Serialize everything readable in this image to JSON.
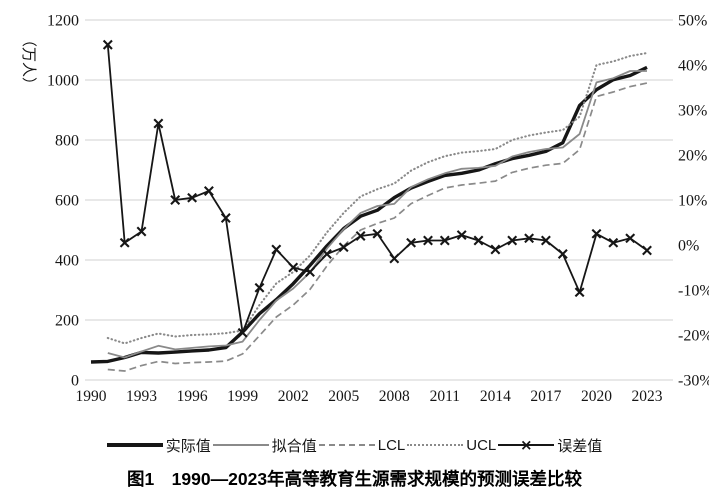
{
  "figure": {
    "caption": "图1　1990—2023年高等教育生源需求规模的预测误差比较"
  },
  "chart_data": {
    "type": "line",
    "title": "",
    "grid": "horizontal",
    "legend_position": "bottom",
    "legend_marker": "×",
    "x": [
      1990,
      1991,
      1992,
      1993,
      1994,
      1995,
      1996,
      1997,
      1998,
      1999,
      2000,
      2001,
      2002,
      2003,
      2004,
      2005,
      2006,
      2007,
      2008,
      2009,
      2010,
      2011,
      2012,
      2013,
      2014,
      2015,
      2016,
      2017,
      2018,
      2019,
      2020,
      2021,
      2022,
      2023
    ],
    "x_tick_labels": [
      "1990",
      "1993",
      "1996",
      "1999",
      "2002",
      "2005",
      "2008",
      "2011",
      "2014",
      "2017",
      "2020",
      "2023"
    ],
    "left_axis": {
      "label": "（万人）",
      "ticks": [
        0,
        200,
        400,
        600,
        800,
        1000,
        1200
      ],
      "range": [
        0,
        1200
      ]
    },
    "right_axis": {
      "ticks": [
        50,
        40,
        30,
        20,
        10,
        0,
        -10,
        -20,
        -30
      ],
      "suffix": "%",
      "range": [
        -30,
        50
      ]
    },
    "colors": {
      "black": "#161616",
      "gray": "#8a8a8a",
      "grid": "#d9d9d9"
    },
    "series": [
      {
        "name": "实际值",
        "style": "actual",
        "axis": "left",
        "values": [
          60,
          62,
          75,
          92,
          90,
          93,
          97,
          100,
          108,
          160,
          221,
          268,
          321,
          382,
          447,
          505,
          546,
          566,
          608,
          640,
          662,
          682,
          689,
          700,
          721,
          738,
          749,
          762,
          791,
          915,
          968,
          1001,
          1015,
          1042
        ]
      },
      {
        "name": "拟合值",
        "style": "fitted",
        "axis": "left",
        "values": [
          null,
          90,
          75,
          95,
          114,
          102,
          107,
          112,
          115,
          128,
          200,
          265,
          305,
          359,
          438,
          503,
          557,
          580,
          587,
          643,
          669,
          689,
          704,
          707,
          714,
          745,
          760,
          770,
          775,
          820,
          992,
          1006,
          1030,
          1030
        ]
      },
      {
        "name": "LCL",
        "style": "lcl",
        "axis": "left",
        "values": [
          null,
          35,
          30,
          48,
          62,
          55,
          58,
          60,
          63,
          87,
          148,
          210,
          250,
          302,
          380,
          447,
          500,
          522,
          540,
          588,
          615,
          640,
          650,
          656,
          663,
          692,
          706,
          716,
          722,
          768,
          945,
          960,
          978,
          990
        ]
      },
      {
        "name": "UCL",
        "style": "ucl",
        "axis": "left",
        "values": [
          null,
          140,
          122,
          140,
          155,
          145,
          150,
          152,
          156,
          165,
          250,
          322,
          360,
          415,
          492,
          557,
          612,
          636,
          655,
          698,
          726,
          746,
          758,
          763,
          770,
          800,
          815,
          825,
          833,
          878,
          1050,
          1062,
          1080,
          1090
        ]
      },
      {
        "name": "误差值",
        "style": "error",
        "axis": "right",
        "values": [
          null,
          44.5,
          0.5,
          3,
          27,
          10,
          10.5,
          12,
          6,
          -19.5,
          -9.5,
          -1,
          -5,
          -6,
          -2,
          -0.5,
          2,
          2.5,
          -3,
          0.5,
          1,
          1,
          2.2,
          1,
          -1,
          1,
          1.5,
          1,
          -2,
          -10.5,
          2.5,
          0.5,
          1.5,
          -1.2
        ]
      }
    ]
  }
}
